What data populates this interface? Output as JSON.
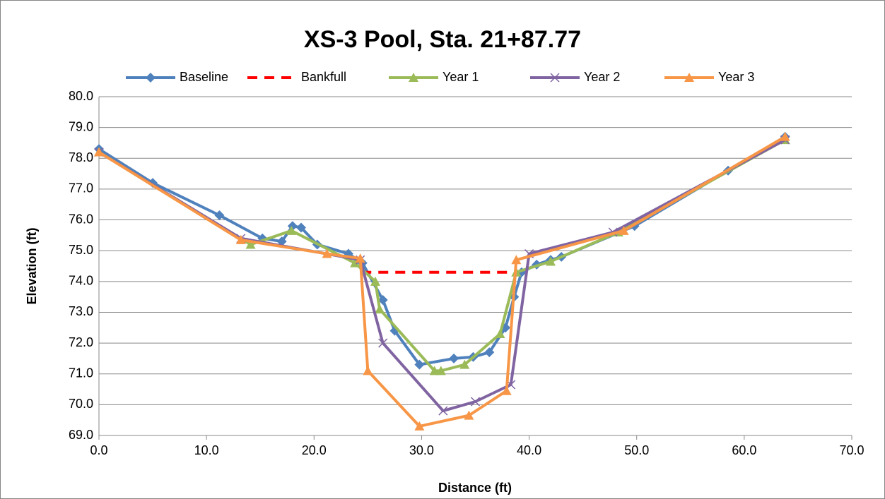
{
  "chart_data": {
    "type": "line",
    "title": "XS-3 Pool, Sta. 21+87.77",
    "xlabel": "Distance (ft)",
    "ylabel": "Elevation (ft)",
    "xlim": [
      0,
      70
    ],
    "ylim": [
      69,
      80
    ],
    "xticks": [
      {
        "value": 0,
        "label": "0.0"
      },
      {
        "value": 10,
        "label": "10.0"
      },
      {
        "value": 20,
        "label": "20.0"
      },
      {
        "value": 30,
        "label": "30.0"
      },
      {
        "value": 40,
        "label": "40.0"
      },
      {
        "value": 50,
        "label": "50.0"
      },
      {
        "value": 60,
        "label": "60.0"
      },
      {
        "value": 70,
        "label": "70.0"
      }
    ],
    "yticks": [
      {
        "value": 69,
        "label": "69.0"
      },
      {
        "value": 70,
        "label": "70.0"
      },
      {
        "value": 71,
        "label": "71.0"
      },
      {
        "value": 72,
        "label": "72.0"
      },
      {
        "value": 73,
        "label": "73.0"
      },
      {
        "value": 74,
        "label": "74.0"
      },
      {
        "value": 75,
        "label": "75.0"
      },
      {
        "value": 76,
        "label": "76.0"
      },
      {
        "value": 77,
        "label": "77.0"
      },
      {
        "value": 78,
        "label": "78.0"
      },
      {
        "value": 79,
        "label": "79.0"
      },
      {
        "value": 80,
        "label": "80.0"
      }
    ],
    "grid": true,
    "legend": "top",
    "series": [
      {
        "name": "Baseline",
        "color": "#4f81bd",
        "marker": "diamond",
        "x": [
          0,
          5,
          11.2,
          15.2,
          17,
          18,
          18.8,
          20.3,
          23.2,
          24.5,
          26.4,
          27.5,
          29.8,
          33,
          34.8,
          36.3,
          37.8,
          38.6,
          39.3,
          40.7,
          42,
          43,
          49.8,
          58.5,
          63.8
        ],
        "values": [
          78.3,
          77.2,
          76.15,
          75.4,
          75.3,
          75.8,
          75.75,
          75.2,
          74.9,
          74.6,
          73.4,
          72.4,
          71.3,
          71.5,
          71.55,
          71.7,
          72.5,
          73.5,
          74.3,
          74.55,
          74.7,
          74.8,
          75.8,
          77.6,
          78.7
        ]
      },
      {
        "name": "Bankfull",
        "color": "#ff0000",
        "marker": "none",
        "dashed": true,
        "x": [
          24.4,
          38.8
        ],
        "values": [
          74.3,
          74.3
        ]
      },
      {
        "name": "Year 1",
        "color": "#9bbb59",
        "marker": "triangle",
        "x": [
          0,
          14.1,
          17.9,
          23.8,
          25.7,
          26.1,
          31.2,
          31.8,
          34,
          37.3,
          38.8,
          42,
          48.3,
          63.8
        ],
        "values": [
          78.2,
          75.2,
          75.65,
          74.6,
          74.0,
          73.1,
          71.1,
          71.1,
          71.3,
          72.3,
          74.3,
          74.65,
          75.6,
          78.6
        ]
      },
      {
        "name": "Year 2",
        "color": "#8064a2",
        "marker": "x",
        "x": [
          0,
          13.2,
          24.3,
          26.4,
          32,
          35,
          38.3,
          40,
          47.8,
          63.8
        ],
        "values": [
          78.2,
          75.4,
          74.7,
          72.0,
          69.8,
          70.1,
          70.65,
          74.9,
          75.6,
          78.6
        ]
      },
      {
        "name": "Year 3",
        "color": "#f79646",
        "marker": "triangle",
        "x": [
          0,
          13.2,
          21.2,
          24.3,
          25,
          29.8,
          34.4,
          37.9,
          38.8,
          48.8,
          63.8
        ],
        "values": [
          78.2,
          75.35,
          74.9,
          74.75,
          71.1,
          69.3,
          69.65,
          70.45,
          74.7,
          75.65,
          78.7
        ]
      }
    ]
  }
}
